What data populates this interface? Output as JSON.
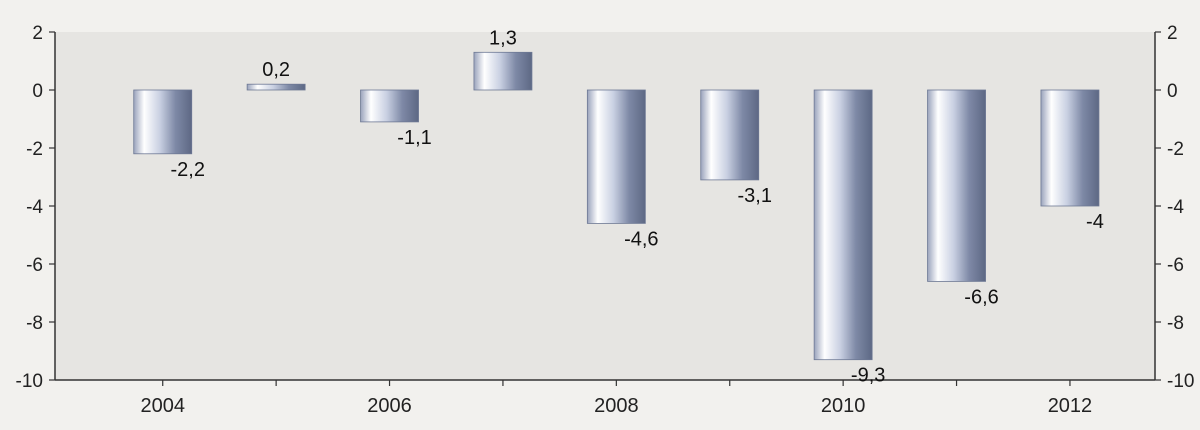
{
  "chart_data": {
    "type": "bar",
    "categories": [
      "2004",
      "2005",
      "2006",
      "2007",
      "2008",
      "2009",
      "2010",
      "2011",
      "2012"
    ],
    "values": [
      -2.2,
      0.2,
      -1.1,
      1.3,
      -4.6,
      -3.1,
      -9.3,
      -6.6,
      -4
    ],
    "value_labels": [
      "-2,2",
      "0,2",
      "-1,1",
      "1,3",
      "-4,6",
      "-3,1",
      "-9,3",
      "-6,6",
      "-4"
    ],
    "x_tick_labels": [
      "2004",
      "",
      "2006",
      "",
      "2008",
      "",
      "2010",
      "",
      "2012"
    ],
    "y_ticks": [
      2,
      0,
      -2,
      -4,
      -6,
      -8,
      -10
    ],
    "y_tick_labels": [
      "2",
      "0",
      "-2",
      "-4",
      "-6",
      "-8",
      "-10"
    ],
    "ylim": [
      -10,
      2
    ],
    "axes": "left and right",
    "grid": false,
    "legend": "none",
    "title": "",
    "xlabel": "",
    "ylabel": "",
    "colors": {
      "bar_light": "#f4f6fb",
      "bar_mid": "#b9c1d8",
      "bar_dark": "#6d7894",
      "plot_bg": "#e6e5e2",
      "axis": "#333333"
    }
  }
}
